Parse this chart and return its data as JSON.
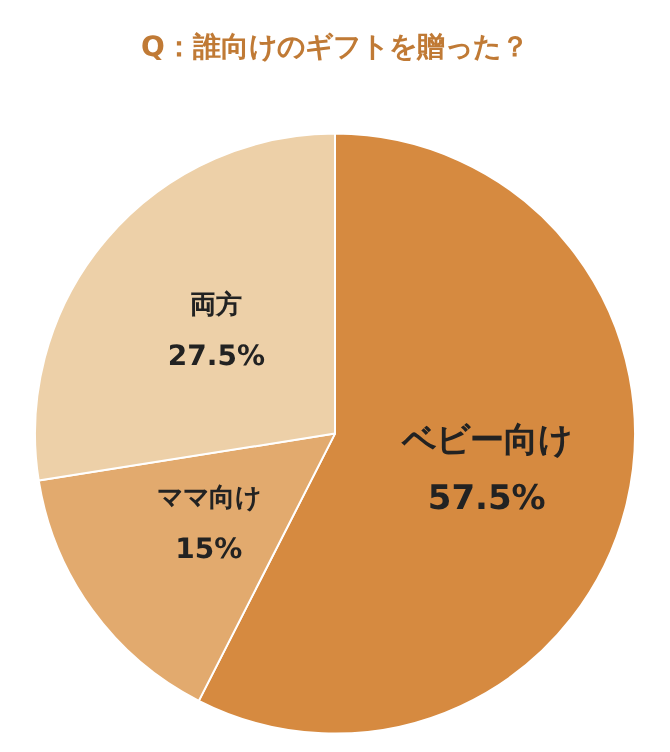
{
  "chart_data": {
    "type": "pie",
    "title": "Q：誰向けのギフトを贈った？",
    "categories": [
      "ベビー向け",
      "ママ向け",
      "両方"
    ],
    "values": [
      57.5,
      15,
      27.5
    ],
    "value_labels": [
      "57.5%",
      "15%",
      "27.5%"
    ],
    "colors": [
      "#d68a40",
      "#e2aa6e",
      "#edd0a8"
    ],
    "legend": false
  }
}
